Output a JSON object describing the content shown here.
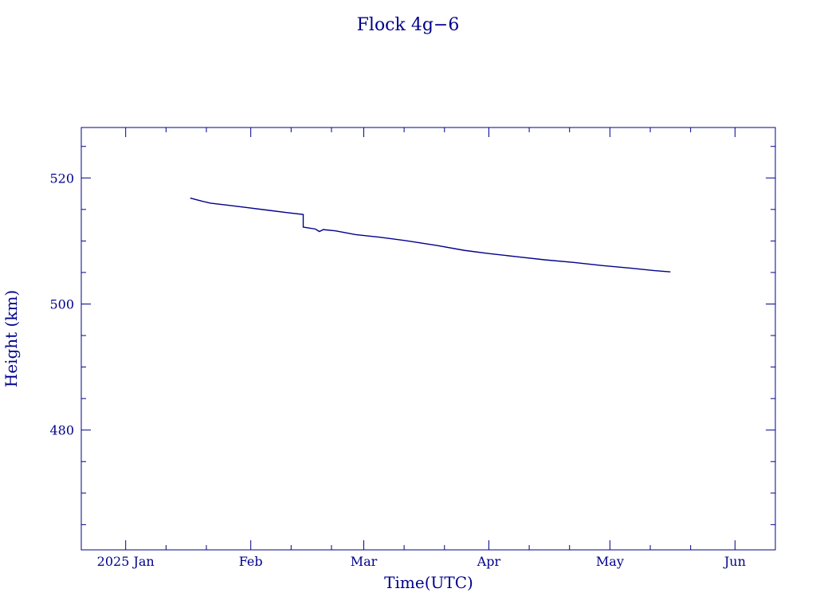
{
  "chart_data": {
    "type": "line",
    "title": "Flock 4g−6",
    "xlabel": "Time(UTC)",
    "ylabel": "Height (km)",
    "xlim": [
      "2024-12-21",
      "2025-06-11"
    ],
    "ylim": [
      461,
      528
    ],
    "x_ticks": [
      {
        "date": "2025-01-01",
        "label": "2025 Jan"
      },
      {
        "date": "2025-02-01",
        "label": "Feb"
      },
      {
        "date": "2025-03-01",
        "label": "Mar"
      },
      {
        "date": "2025-04-01",
        "label": "Apr"
      },
      {
        "date": "2025-05-01",
        "label": "May"
      },
      {
        "date": "2025-06-01",
        "label": "Jun"
      }
    ],
    "y_ticks": [
      {
        "value": 480,
        "label": "480"
      },
      {
        "value": 500,
        "label": "500"
      },
      {
        "value": 520,
        "label": "520"
      }
    ],
    "y_minor_step": 5,
    "grid": false,
    "color": "#00008b",
    "series": [
      {
        "x": [
          "2025-01-17",
          "2025-01-20",
          "2025-01-22",
          "2025-01-26",
          "2025-01-31",
          "2025-02-05",
          "2025-02-10",
          "2025-02-14",
          "2025-02-14",
          "2025-02-15",
          "2025-02-17",
          "2025-02-18",
          "2025-02-19",
          "2025-02-22",
          "2025-02-27",
          "2025-03-05",
          "2025-03-12",
          "2025-03-19",
          "2025-03-26",
          "2025-04-01",
          "2025-04-08",
          "2025-04-15",
          "2025-04-22",
          "2025-04-29",
          "2025-05-06",
          "2025-05-12",
          "2025-05-16"
        ],
        "y": [
          516.8,
          516.3,
          516.0,
          515.7,
          515.3,
          514.9,
          514.5,
          514.2,
          512.2,
          512.1,
          511.9,
          511.5,
          511.8,
          511.6,
          511.0,
          510.6,
          510.0,
          509.3,
          508.5,
          508.0,
          507.5,
          507.0,
          506.6,
          506.1,
          505.7,
          505.3,
          505.1
        ]
      }
    ]
  }
}
